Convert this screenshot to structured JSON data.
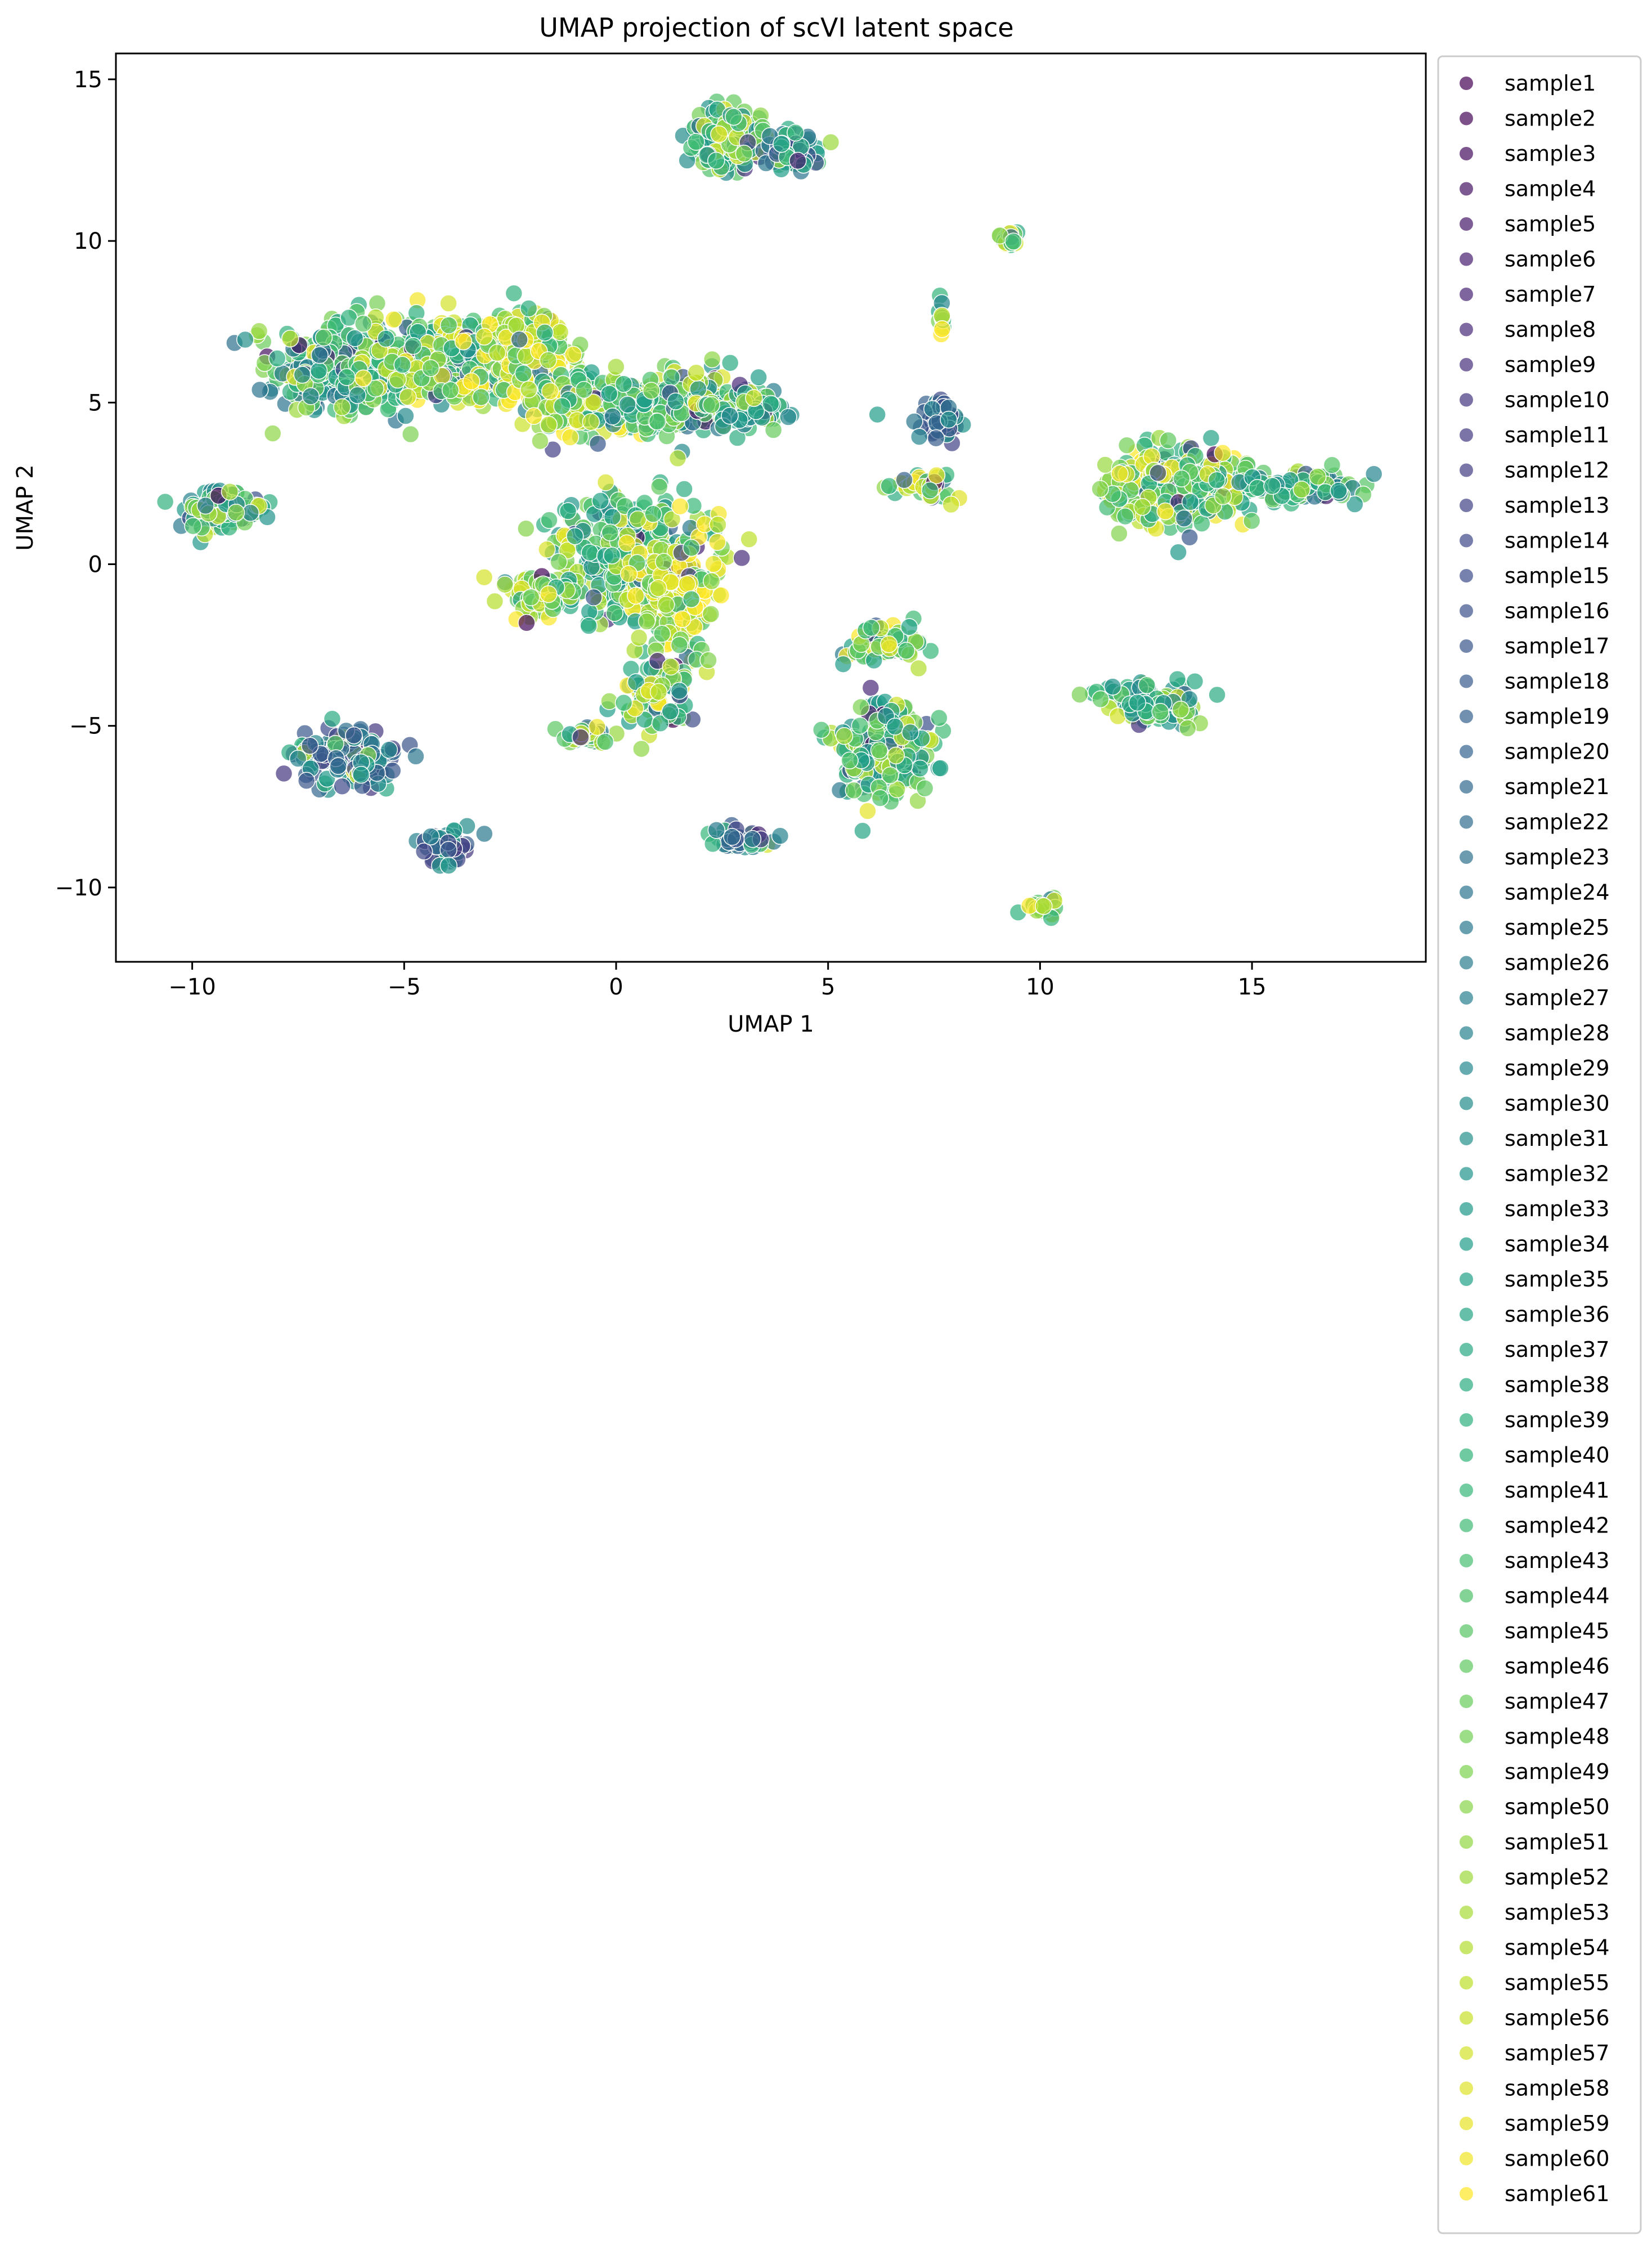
{
  "chart_data": {
    "type": "scatter",
    "title": "UMAP projection of scVI latent space",
    "xlabel": "UMAP 1",
    "ylabel": "UMAP 2",
    "xlim": [
      -11.8,
      19.1
    ],
    "ylim": [
      -12.3,
      15.8
    ],
    "xticks": [
      -10,
      -5,
      0,
      5,
      10,
      15
    ],
    "xtick_labels": [
      "−10",
      "−5",
      "0",
      "5",
      "10",
      "15"
    ],
    "yticks": [
      -10,
      -5,
      0,
      5,
      10,
      15
    ],
    "ytick_labels": [
      "−10",
      "−5",
      "0",
      "5",
      "10",
      "15"
    ],
    "grid": false,
    "legend_placement": "outside-right",
    "colormap": "viridis",
    "colormap_endpoints": [
      "#440154",
      "#fde725"
    ],
    "point_alpha": 0.7,
    "series_names": [
      "sample1",
      "sample2",
      "sample3",
      "sample4",
      "sample5",
      "sample6",
      "sample7",
      "sample8",
      "sample9",
      "sample10",
      "sample11",
      "sample12",
      "sample13",
      "sample14",
      "sample15",
      "sample16",
      "sample17",
      "sample18",
      "sample19",
      "sample20",
      "sample21",
      "sample22",
      "sample23",
      "sample24",
      "sample25",
      "sample26",
      "sample27",
      "sample28",
      "sample29",
      "sample30",
      "sample31",
      "sample32",
      "sample33",
      "sample34",
      "sample35",
      "sample36",
      "sample37",
      "sample38",
      "sample39",
      "sample40",
      "sample41",
      "sample42",
      "sample43",
      "sample44",
      "sample45",
      "sample46",
      "sample47",
      "sample48",
      "sample49",
      "sample50",
      "sample51",
      "sample52",
      "sample53",
      "sample54",
      "sample55",
      "sample56",
      "sample57",
      "sample58",
      "sample59",
      "sample60",
      "sample61"
    ],
    "clusters": [
      {
        "cx": -6.5,
        "cy": 6.0,
        "sx": 1.0,
        "sy": 0.9,
        "n": 380,
        "hue": 0.62
      },
      {
        "cx": -4.0,
        "cy": 6.3,
        "sx": 1.0,
        "sy": 0.9,
        "n": 300,
        "hue": 0.78
      },
      {
        "cx": -2.2,
        "cy": 6.6,
        "sx": 0.7,
        "sy": 0.8,
        "n": 200,
        "hue": 0.85
      },
      {
        "cx": -0.7,
        "cy": 4.9,
        "sx": 0.9,
        "sy": 0.6,
        "n": 220,
        "hue": 0.8
      },
      {
        "cx": 1.5,
        "cy": 5.0,
        "sx": 1.0,
        "sy": 0.6,
        "n": 240,
        "hue": 0.72
      },
      {
        "cx": 3.2,
        "cy": 4.8,
        "sx": 0.5,
        "sy": 0.4,
        "n": 80,
        "hue": 0.65
      },
      {
        "cx": -9.3,
        "cy": 1.7,
        "sx": 0.6,
        "sy": 0.4,
        "n": 110,
        "hue": 0.66
      },
      {
        "cx": 0.3,
        "cy": 0.3,
        "sx": 1.1,
        "sy": 1.2,
        "n": 330,
        "hue": 0.72
      },
      {
        "cx": 1.4,
        "cy": -0.4,
        "sx": 0.7,
        "sy": 1.3,
        "n": 180,
        "hue": 0.88
      },
      {
        "cx": -1.8,
        "cy": -1.0,
        "sx": 0.6,
        "sy": 0.4,
        "n": 80,
        "hue": 0.78
      },
      {
        "cx": 1.0,
        "cy": -4.0,
        "sx": 0.6,
        "sy": 0.9,
        "n": 110,
        "hue": 0.76
      },
      {
        "cx": -0.8,
        "cy": -5.3,
        "sx": 0.4,
        "sy": 0.2,
        "n": 40,
        "hue": 0.8
      },
      {
        "cx": 2.6,
        "cy": 13.2,
        "sx": 0.6,
        "sy": 0.6,
        "n": 150,
        "hue": 0.72
      },
      {
        "cx": 4.2,
        "cy": 12.8,
        "sx": 0.5,
        "sy": 0.4,
        "n": 60,
        "hue": 0.45
      },
      {
        "cx": 9.3,
        "cy": 10.1,
        "sx": 0.2,
        "sy": 0.2,
        "n": 18,
        "hue": 0.78
      },
      {
        "cx": 7.7,
        "cy": 7.6,
        "sx": 0.1,
        "sy": 0.4,
        "n": 10,
        "hue": 0.8
      },
      {
        "cx": 7.6,
        "cy": 4.4,
        "sx": 0.4,
        "sy": 0.4,
        "n": 50,
        "hue": 0.35
      },
      {
        "cx": 7.2,
        "cy": 2.5,
        "sx": 0.5,
        "sy": 0.3,
        "n": 40,
        "hue": 0.85
      },
      {
        "cx": 13.2,
        "cy": 2.4,
        "sx": 1.1,
        "sy": 0.8,
        "n": 300,
        "hue": 0.78
      },
      {
        "cx": 16.2,
        "cy": 2.4,
        "sx": 0.9,
        "sy": 0.3,
        "n": 110,
        "hue": 0.62
      },
      {
        "cx": 6.3,
        "cy": -2.5,
        "sx": 0.6,
        "sy": 0.4,
        "n": 70,
        "hue": 0.8
      },
      {
        "cx": 6.4,
        "cy": -5.7,
        "sx": 0.7,
        "sy": 1.0,
        "n": 200,
        "hue": 0.72
      },
      {
        "cx": 12.7,
        "cy": -4.3,
        "sx": 0.8,
        "sy": 0.4,
        "n": 120,
        "hue": 0.7
      },
      {
        "cx": -6.3,
        "cy": -5.9,
        "sx": 0.8,
        "sy": 0.6,
        "n": 150,
        "hue": 0.38
      },
      {
        "cx": -4.1,
        "cy": -8.7,
        "sx": 0.4,
        "sy": 0.4,
        "n": 50,
        "hue": 0.38
      },
      {
        "cx": 3.0,
        "cy": -8.5,
        "sx": 0.5,
        "sy": 0.2,
        "n": 40,
        "hue": 0.42
      },
      {
        "cx": 10.1,
        "cy": -10.6,
        "sx": 0.3,
        "sy": 0.2,
        "n": 22,
        "hue": 0.8
      }
    ]
  }
}
